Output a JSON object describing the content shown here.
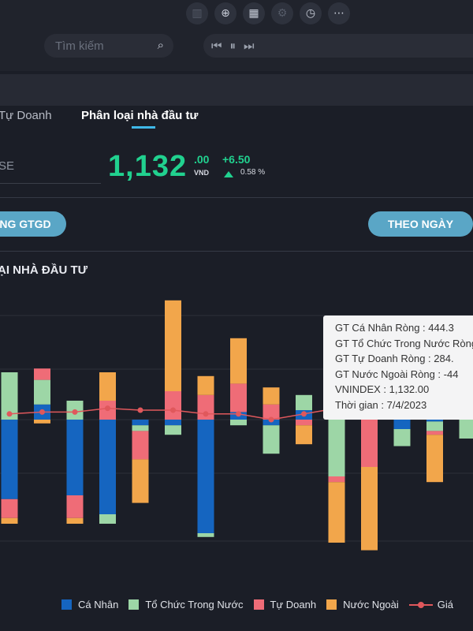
{
  "header": {
    "search_placeholder": "Tìm kiếm",
    "icons": [
      "list-icon",
      "zoom-icon",
      "calendar-icon",
      "settings-icon",
      "clock-icon",
      "more-icon"
    ],
    "player_icons": [
      "skip-back-icon",
      "pause-icon",
      "skip-forward-icon"
    ]
  },
  "tabs": {
    "inactive": "Tự Doanh",
    "active": "Phân loại nhà đầu tư"
  },
  "quote": {
    "symbol_partial": "SE",
    "price": "1,132",
    "decimals": ".00",
    "currency": "VND",
    "change": "+6.50",
    "change_pct": "0.58 %",
    "color_up": "#21d18f"
  },
  "buttons": {
    "left": "NG GTGD",
    "right": "THEO NGÀY"
  },
  "chart_title": "ẠI NHÀ ĐẦU TƯ",
  "tooltip": {
    "lines": [
      "GT Cá Nhân Ròng  : 444.3",
      "GT Tổ Chức Trong Nước Ròng",
      "GT Tự Doanh Ròng : 284.",
      "GT Nước Ngoài Ròng : -44",
      "VNINDEX : 1,132.00",
      "Thời gian : 7/4/2023"
    ]
  },
  "legend": [
    {
      "label": "Cá Nhân",
      "color": "#1565c0"
    },
    {
      "label": "Tổ Chức Trong Nước",
      "color": "#9dd6a6"
    },
    {
      "label": "Tự Doanh",
      "color": "#ef6c77"
    },
    {
      "label": "Nước Ngoài",
      "color": "#f2a64b"
    },
    {
      "label": "Giá",
      "color": "#e0585c"
    }
  ],
  "chart_data": {
    "type": "bar",
    "stacked": true,
    "title": "",
    "series": [
      {
        "name": "Cá Nhân",
        "color": "#1565c0",
        "values": [
          -4.2,
          0.8,
          -4,
          -5,
          -0.3,
          -0.3,
          -6,
          0.4,
          -0.3,
          0.5,
          5.2,
          0.8,
          -0.5,
          -0.1,
          0.5,
          -0.3
        ]
      },
      {
        "name": "Tổ Chức Trong Nước",
        "color": "#9dd6a6",
        "values": [
          2.5,
          1.3,
          1,
          -0.5,
          -0.3,
          -0.5,
          -0.2,
          -0.3,
          -1.5,
          0.8,
          -3,
          1.1,
          -0.9,
          -0.5,
          -1,
          -0.2
        ]
      },
      {
        "name": "Tự Doanh",
        "color": "#ef6c77",
        "values": [
          -1,
          0.6,
          -1.2,
          1,
          -1.5,
          1.5,
          1.3,
          1.5,
          0.8,
          -0.3,
          -0.3,
          -2.5,
          0.5,
          -0.2,
          0.5,
          0.5
        ]
      },
      {
        "name": "Nước Ngoài",
        "color": "#f2a64b",
        "values": [
          -0.3,
          -0.2,
          -0.3,
          1.5,
          -2.3,
          4.8,
          1,
          2.4,
          0.9,
          -1,
          -3.2,
          -4.4,
          0.5,
          -2.5,
          0.5,
          -0.3
        ]
      }
    ],
    "price_series": {
      "name": "Giá",
      "values": [
        0.3,
        0.4,
        0.4,
        0.6,
        0.5,
        0.5,
        0.3,
        0.3,
        0,
        0.3,
        0.6,
        0.8,
        0.9,
        1.1,
        1.2,
        1.1
      ]
    },
    "tooltip_date": "7/4/2023",
    "grid": true,
    "legend_position": "bottom"
  }
}
